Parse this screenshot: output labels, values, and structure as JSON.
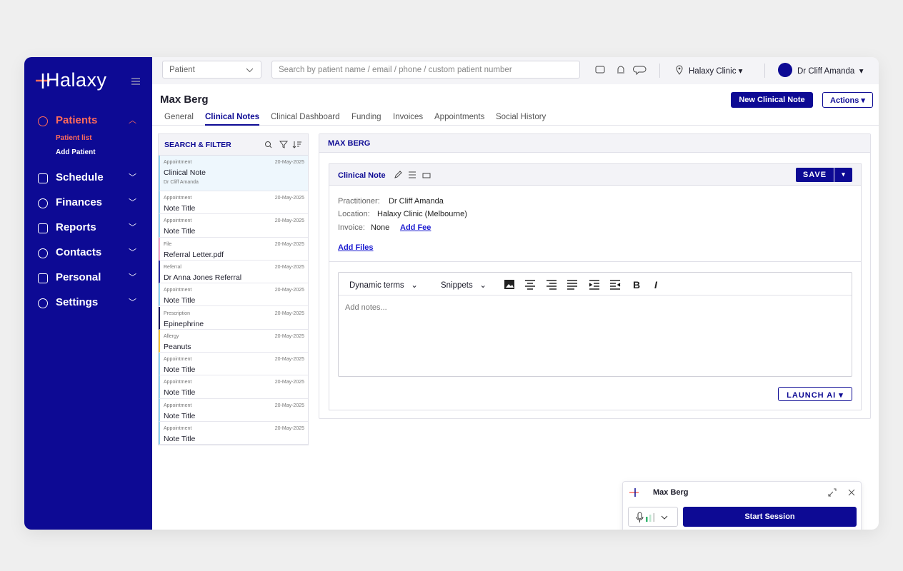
{
  "sidebar": {
    "logo": "Halaxy",
    "nav": [
      {
        "label": "Patients",
        "sub": [
          "Patient list",
          "Add Patient"
        ]
      },
      {
        "label": "Schedule"
      },
      {
        "label": "Finances"
      },
      {
        "label": "Reports"
      },
      {
        "label": "Contacts"
      },
      {
        "label": "Personal"
      },
      {
        "label": "Settings"
      }
    ]
  },
  "topbar": {
    "patient_select": "Patient",
    "search_placeholder": "Search by patient name / email / phone / custom patient number",
    "clinic": "Halaxy Clinic",
    "user": "Dr Cliff Amanda"
  },
  "patient": {
    "name": "Max Berg",
    "tabs": [
      "General",
      "Clinical Notes",
      "Clinical Dashboard",
      "Funding",
      "Invoices",
      "Appointments",
      "Social History"
    ],
    "new_note": "New Clinical Note",
    "actions": "Actions"
  },
  "filter": {
    "title": "SEARCH & FILTER",
    "items": [
      {
        "type": "Appointment",
        "date": "20-May-2025",
        "title": "Clinical Note",
        "sub": "Dr Cliff Amanda",
        "color": "#8fd3f0"
      },
      {
        "type": "Appointment",
        "date": "20-May-2025",
        "title": "Note Title",
        "color": "#8fd3f0"
      },
      {
        "type": "Appointment",
        "date": "20-May-2025",
        "title": "Note Title",
        "color": "#8fd3f0"
      },
      {
        "type": "File",
        "date": "20-May-2025",
        "title": "Referral Letter.pdf",
        "color": "#f2a6c8"
      },
      {
        "type": "Referral",
        "date": "20-May-2025",
        "title": "Dr Anna Jones Referral",
        "color": "#2a2ea0"
      },
      {
        "type": "Appointment",
        "date": "20-May-2025",
        "title": "Note Title",
        "color": "#8fd3f0"
      },
      {
        "type": "Prescription",
        "date": "20-May-2025",
        "title": "Epinephrine",
        "color": "#1a1a5e"
      },
      {
        "type": "Allergy",
        "date": "20-May-2025",
        "title": "Peanuts",
        "color": "#f5c232"
      },
      {
        "type": "Appointment",
        "date": "20-May-2025",
        "title": "Note Title",
        "color": "#8fd3f0"
      },
      {
        "type": "Appointment",
        "date": "20-May-2025",
        "title": "Note Title",
        "color": "#8fd3f0"
      },
      {
        "type": "Appointment",
        "date": "20-May-2025",
        "title": "Note Title",
        "color": "#8fd3f0"
      },
      {
        "type": "Appointment",
        "date": "20-May-2025",
        "title": "Note Title",
        "color": "#8fd3f0"
      }
    ]
  },
  "note_panel": {
    "heading": "MAX BERG",
    "note_title": "Clinical Note",
    "save": "SAVE",
    "practitioner_label": "Practitioner:",
    "practitioner": "Dr Cliff Amanda",
    "location_label": "Location:",
    "location": "Halaxy Clinic (Melbourne)",
    "invoice_label": "Invoice:",
    "invoice": "None",
    "add_fee": "Add Fee",
    "add_files": "Add Files",
    "dynamic_terms": "Dynamic terms",
    "snippets": "Snippets",
    "placeholder": "Add notes...",
    "launch_ai": "LAUNCH AI"
  },
  "session": {
    "name": "Max Berg",
    "start": "Start Session"
  }
}
